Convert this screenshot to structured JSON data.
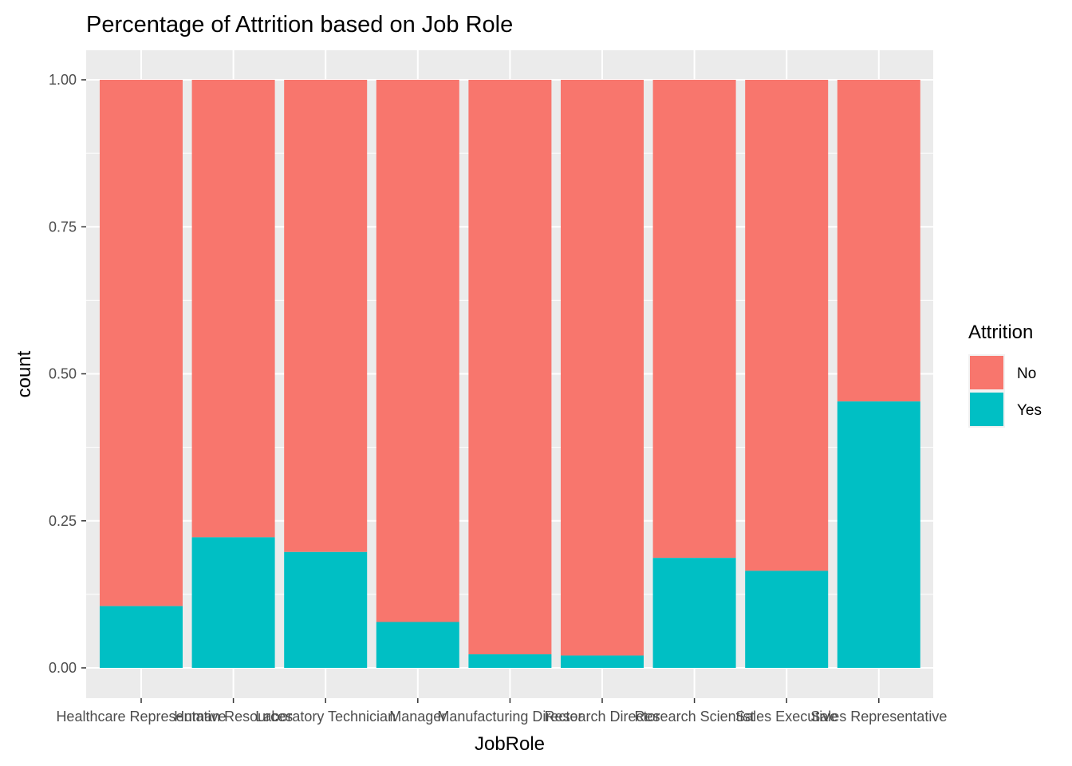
{
  "chart_data": {
    "type": "bar",
    "stacked": "fill",
    "title": "Percentage of Attrition based on Job Role",
    "xlabel": "JobRole",
    "ylabel": "count",
    "ylim": [
      0,
      1
    ],
    "yticks": [
      "0.00",
      "0.25",
      "0.50",
      "0.75",
      "1.00"
    ],
    "ytick_values": [
      0,
      0.25,
      0.5,
      0.75,
      1.0
    ],
    "grid": true,
    "legend": {
      "title": "Attrition",
      "position": "right",
      "entries": [
        "No",
        "Yes"
      ]
    },
    "categories": [
      "Healthcare Representative",
      "Human Resources",
      "Laboratory Technician",
      "Manager",
      "Manufacturing Director",
      "Research Director",
      "Research Scientist",
      "Sales Executive",
      "Sales Representative"
    ],
    "series": [
      {
        "name": "No",
        "color": "#F8766D",
        "values": [
          0.895,
          0.778,
          0.803,
          0.922,
          0.977,
          0.979,
          0.813,
          0.835,
          0.547
        ]
      },
      {
        "name": "Yes",
        "color": "#00BFC4",
        "values": [
          0.105,
          0.222,
          0.197,
          0.078,
          0.023,
          0.021,
          0.187,
          0.165,
          0.453
        ]
      }
    ]
  }
}
